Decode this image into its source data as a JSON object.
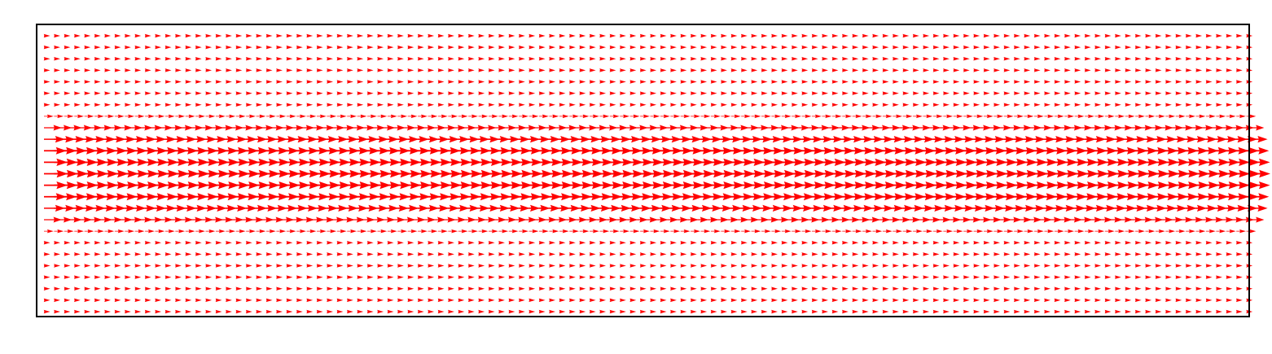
{
  "chart_data": {
    "type": "quiver",
    "title": "",
    "xlabel": "",
    "ylabel": "",
    "axes_visible": false,
    "grid": false,
    "legend": "none",
    "arrow_color": "#ff0000",
    "direction": "right",
    "field": {
      "columns": 120,
      "rows": 25,
      "row_magnitudes": [
        0.18,
        0.18,
        0.18,
        0.18,
        0.18,
        0.18,
        0.18,
        0.28,
        0.52,
        0.62,
        0.66,
        0.69,
        0.7,
        0.69,
        0.66,
        0.62,
        0.52,
        0.28,
        0.18,
        0.18,
        0.18,
        0.18,
        0.18,
        0.18,
        0.18
      ]
    }
  }
}
